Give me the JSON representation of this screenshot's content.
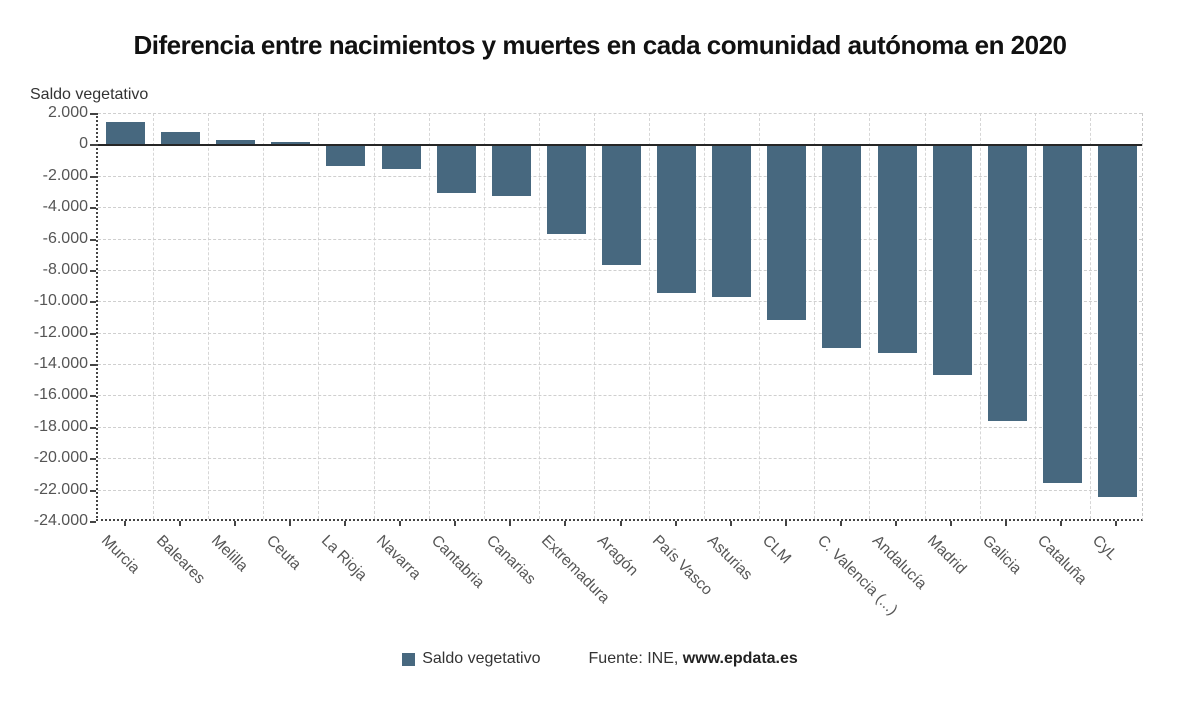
{
  "title": "Diferencia entre nacimientos y muertes en cada comunidad autónoma en 2020",
  "y_axis_title": "Saldo vegetativo",
  "legend": {
    "label": "Saldo vegetativo"
  },
  "source": {
    "prefix": "Fuente: INE,",
    "site": "www.epdata.es"
  },
  "colors": {
    "bar": "#47687F",
    "grid": "#cfcfcf",
    "zero_line": "#262626",
    "axis": "#444444",
    "tick_label": "#555555",
    "title": "#111111"
  },
  "chart_data": {
    "type": "bar",
    "title": "Diferencia entre nacimientos y muertes en cada comunidad autónoma en 2020",
    "xlabel": "",
    "ylabel": "Saldo vegetativo",
    "categories": [
      "Murcia",
      "Baleares",
      "Melilla",
      "Ceuta",
      "La Rioja",
      "Navarra",
      "Cantabria",
      "Canarias",
      "Extremadura",
      "Aragón",
      "País Vasco",
      "Asturias",
      "CLM",
      "C. Valencia (...)",
      "Andalucía",
      "Madrid",
      "Galicia",
      "Cataluña",
      "CyL"
    ],
    "values": [
      1400,
      800,
      300,
      150,
      -1400,
      -1600,
      -3100,
      -3300,
      -5700,
      -7700,
      -9500,
      -9700,
      -11200,
      -13000,
      -13300,
      -14700,
      -17600,
      -21600,
      -22500
    ],
    "series_name": "Saldo vegetativo",
    "ylim": [
      -24000,
      2000
    ],
    "yticks": [
      2000,
      0,
      -2000,
      -4000,
      -6000,
      -8000,
      -10000,
      -12000,
      -14000,
      -16000,
      -18000,
      -20000,
      -22000,
      -24000
    ],
    "ytick_labels": [
      "2.000",
      "0",
      "-2.000",
      "-4.000",
      "-6.000",
      "-8.000",
      "-10.000",
      "-12.000",
      "-14.000",
      "-16.000",
      "-18.000",
      "-20.000",
      "-22.000",
      "-24.000"
    ],
    "grid": true,
    "grid_style": "dashed",
    "legend_position": "bottom",
    "x_label_rotation": 45
  }
}
